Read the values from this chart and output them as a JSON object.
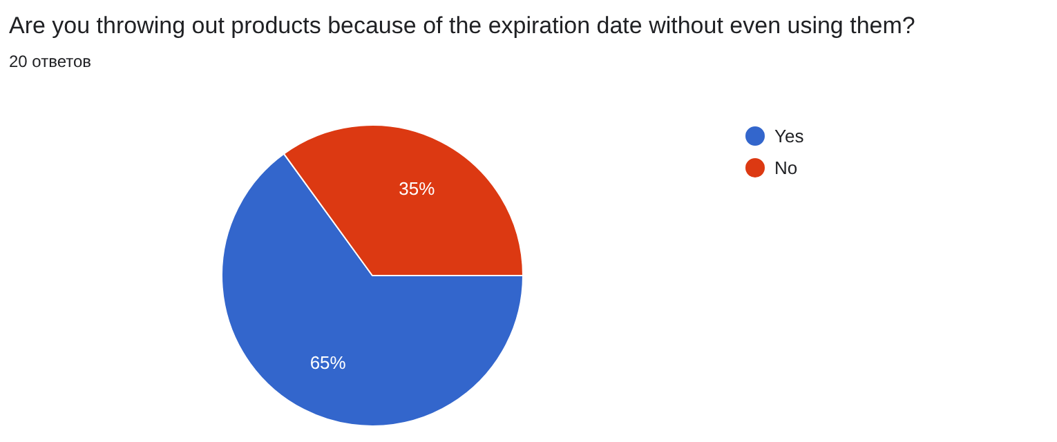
{
  "chart_data": {
    "type": "pie",
    "title": "Are you throwing out products because of the expiration date without even using them?",
    "subtitle": "20 ответов",
    "categories": [
      "Yes",
      "No"
    ],
    "values": [
      65,
      35
    ],
    "colors": [
      "#3366cc",
      "#dc3912"
    ],
    "value_labels": [
      "65%",
      "35%"
    ],
    "legend": "right"
  }
}
